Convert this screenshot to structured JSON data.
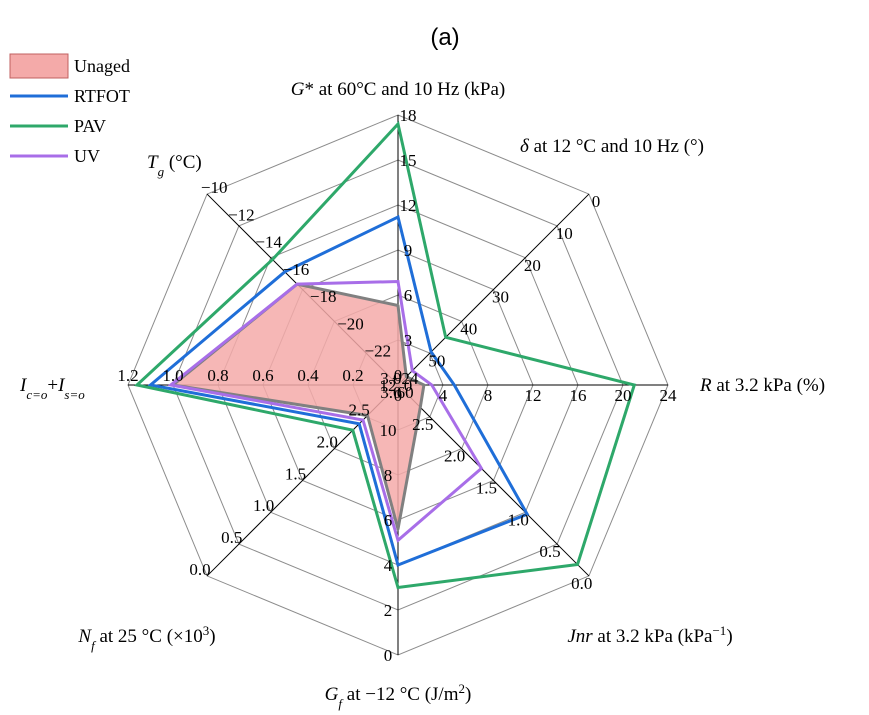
{
  "chart_data": {
    "type": "radar",
    "title": "(a)",
    "legend_position": "top-left",
    "colors": {
      "Unaged": "#f4aaa9",
      "Unaged_outline": "#808080",
      "RTFOT": "#1f6ed8",
      "PAV": "#2ea86a",
      "UV": "#a86ee8",
      "grid": "#8c8c8c",
      "spoke": "#000000"
    },
    "axes": [
      {
        "label": "G* at 60°C and 10 Hz (kPa)",
        "min": 0,
        "max": 18,
        "ticks": [
          "0",
          "3",
          "6",
          "9",
          "12",
          "15",
          "18"
        ]
      },
      {
        "label": "δ at 12 °C and 10 Hz (°)",
        "min": 60,
        "max": 0,
        "ticks": [
          "60",
          "50",
          "40",
          "30",
          "20",
          "10",
          "0"
        ]
      },
      {
        "label": "R at 3.2 kPa (%)",
        "min": 0,
        "max": 24,
        "ticks": [
          "0",
          "4",
          "8",
          "12",
          "16",
          "20",
          "24"
        ]
      },
      {
        "label": "Jnr at 3.2 kPa (kPa−1)",
        "min": 3.0,
        "max": 0.0,
        "ticks": [
          "3.0",
          "2.5",
          "2.0",
          "1.5",
          "1.0",
          "0.5",
          "0.0"
        ]
      },
      {
        "label": "Gf at −12 °C (J/m2)",
        "min": 12,
        "max": 0,
        "ticks": [
          "12",
          "10",
          "8",
          "6",
          "4",
          "2",
          "0"
        ]
      },
      {
        "label": "Nf at 25 °C (×103)",
        "min": 3.0,
        "max": 0.0,
        "ticks": [
          "3.0",
          "2.5",
          "2.0",
          "1.5",
          "1.0",
          "0.5",
          "0.0"
        ]
      },
      {
        "label": "Ic=o+Is=o",
        "min": 0,
        "max": 1.2,
        "ticks": [
          "0",
          "0.2",
          "0.4",
          "0.6",
          "0.8",
          "1.0",
          "1.2"
        ]
      },
      {
        "label": "Tg (°C)",
        "min": -24,
        "max": -10,
        "ticks": [
          "−24",
          "−22",
          "−20",
          "−18",
          "−16",
          "−14",
          "−12",
          "−10"
        ]
      }
    ],
    "series": [
      {
        "name": "Unaged",
        "values": [
          5.3,
          57.4,
          2.3,
          2.65,
          5.6,
          2.52,
          1.0,
          -16.6
        ]
      },
      {
        "name": "RTFOT",
        "values": [
          11.2,
          49.6,
          5.0,
          0.97,
          4.0,
          2.39,
          1.1,
          -15.7
        ]
      },
      {
        "name": "PAV",
        "values": [
          17.4,
          45.0,
          21.0,
          0.18,
          3.0,
          2.29,
          1.16,
          -14.8
        ]
      },
      {
        "name": "UV",
        "values": [
          6.9,
          55.5,
          3.0,
          1.69,
          5.1,
          2.45,
          1.01,
          -16.6
        ]
      }
    ]
  }
}
